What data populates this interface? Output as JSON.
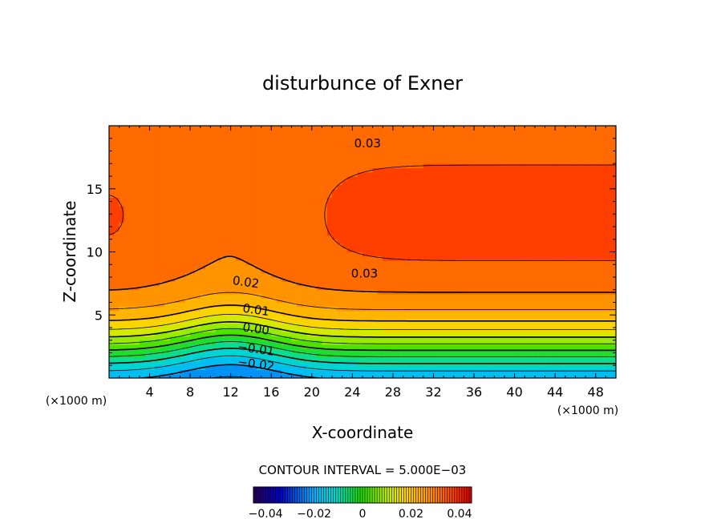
{
  "chart_data": {
    "type": "heatmap",
    "title": "disturbunce of Exner",
    "xlabel": "X-coordinate",
    "ylabel": "Z-coordinate",
    "x_unit_left": "(×1000 m)",
    "x_unit_right": "(×1000 m)",
    "xlim": [
      0,
      50
    ],
    "ylim": [
      0,
      20
    ],
    "x_ticks": [
      "4",
      "8",
      "12",
      "16",
      "20",
      "24",
      "28",
      "32",
      "36",
      "40",
      "44",
      "48"
    ],
    "y_ticks": [
      "5",
      "10",
      "15"
    ],
    "contour_interval_text": "CONTOUR INTERVAL = 5.000E−03",
    "contour_interval": 0.005,
    "value_range": [
      -0.045,
      0.045
    ],
    "contour_labels": [
      "0.03",
      "0.03",
      "0.02",
      "0.01",
      "0.00",
      "−0.01",
      "−0.02"
    ],
    "colorbar_ticks": [
      "−0.04",
      "−0.02",
      "0",
      "0.02",
      "0.04"
    ],
    "colorbar_values": [
      -0.04,
      -0.02,
      0,
      0.02,
      0.04
    ],
    "negative_contours": "dashed",
    "field_summary": "Maximum about 0.04 near x=28-48, z=12-13; minimum about -0.03 near x=12 at the surface; saddle near x=12, z=12-18."
  }
}
